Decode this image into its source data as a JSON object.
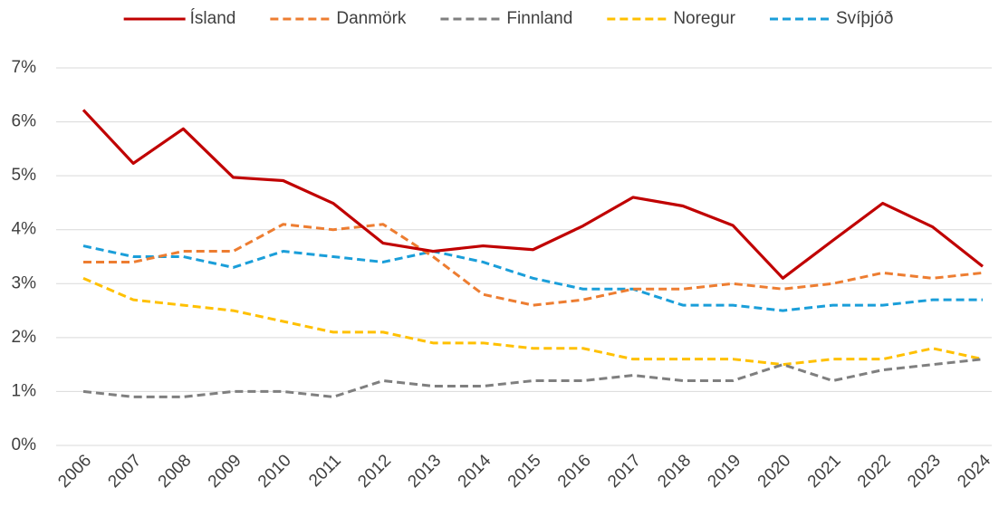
{
  "chart_data": {
    "type": "line",
    "categories": [
      "2006",
      "2007",
      "2008",
      "2009",
      "2010",
      "2011",
      "2012",
      "2013",
      "2014",
      "2015",
      "2016",
      "2017",
      "2018",
      "2019",
      "2020",
      "2021",
      "2022",
      "2023",
      "2024"
    ],
    "series": [
      {
        "name": "Ísland",
        "color": "#c00000",
        "dashed": false,
        "values": [
          6.22,
          5.23,
          5.87,
          4.97,
          4.91,
          4.49,
          3.75,
          3.6,
          3.7,
          3.63,
          4.07,
          4.6,
          4.44,
          4.08,
          3.1,
          3.8,
          4.49,
          4.05,
          3.32
        ]
      },
      {
        "name": "Danmörk",
        "color": "#ed7d31",
        "dashed": true,
        "values": [
          3.4,
          3.4,
          3.6,
          3.6,
          4.1,
          4.0,
          4.1,
          3.5,
          2.8,
          2.6,
          2.7,
          2.9,
          2.9,
          3.0,
          2.9,
          3.0,
          3.2,
          3.1,
          3.2
        ]
      },
      {
        "name": "Finnland",
        "color": "#7f7f7f",
        "dashed": true,
        "values": [
          1.0,
          0.9,
          0.9,
          1.0,
          1.0,
          0.9,
          1.2,
          1.1,
          1.1,
          1.2,
          1.2,
          1.3,
          1.2,
          1.2,
          1.5,
          1.2,
          1.4,
          1.5,
          1.6
        ]
      },
      {
        "name": "Noregur",
        "color": "#ffc000",
        "dashed": true,
        "values": [
          3.1,
          2.7,
          2.6,
          2.5,
          2.3,
          2.1,
          2.1,
          1.9,
          1.9,
          1.8,
          1.8,
          1.6,
          1.6,
          1.6,
          1.5,
          1.6,
          1.6,
          1.8,
          1.6
        ]
      },
      {
        "name": "Svíþjóð",
        "color": "#1a9ed9",
        "dashed": true,
        "values": [
          3.7,
          3.5,
          3.5,
          3.3,
          3.6,
          3.5,
          3.4,
          3.6,
          3.4,
          3.1,
          2.9,
          2.9,
          2.6,
          2.6,
          2.5,
          2.6,
          2.6,
          2.7,
          2.7
        ]
      }
    ],
    "ylim": [
      0,
      7
    ],
    "yticks": [
      {
        "value": 0,
        "label": "0%"
      },
      {
        "value": 1,
        "label": "1%"
      },
      {
        "value": 2,
        "label": "2%"
      },
      {
        "value": 3,
        "label": "3%"
      },
      {
        "value": 4,
        "label": "4%"
      },
      {
        "value": 5,
        "label": "5%"
      },
      {
        "value": 6,
        "label": "6%"
      },
      {
        "value": 7,
        "label": "7%"
      }
    ],
    "grid": true,
    "legend": "top"
  }
}
